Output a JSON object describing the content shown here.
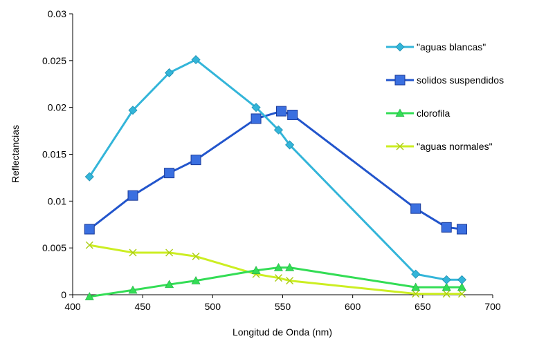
{
  "chart_data": {
    "type": "line",
    "title": "",
    "xlabel": "Longitud de Onda (nm)",
    "ylabel": "Reflectancias",
    "xlim": [
      400,
      700
    ],
    "ylim": [
      0,
      0.03
    ],
    "xticks": [
      400,
      450,
      500,
      550,
      600,
      650,
      700
    ],
    "yticks": [
      0,
      0.005,
      0.01,
      0.015,
      0.02,
      0.025,
      0.03
    ],
    "xtick_labels": [
      "400",
      "450",
      "500",
      "550",
      "600",
      "650",
      "700"
    ],
    "ytick_labels": [
      "0",
      "0.005",
      "0.01",
      "0.015",
      "0.02",
      "0.025",
      "0.03"
    ],
    "grid": false,
    "legend_position": "right",
    "series": [
      {
        "name": "\"aguas blancas\"",
        "color": "#33b5d9",
        "marker": "diamond",
        "x": [
          412,
          443,
          469,
          488,
          531,
          547,
          555,
          645,
          667,
          678
        ],
        "y": [
          0.0126,
          0.0197,
          0.0237,
          0.0251,
          0.02,
          0.0176,
          0.016,
          0.0022,
          0.0016,
          0.0016
        ]
      },
      {
        "name": "solidos suspendidos",
        "color": "#2255cc",
        "marker": "square",
        "x": [
          412,
          443,
          469,
          488,
          531,
          549,
          557,
          645,
          667,
          678
        ],
        "y": [
          0.007,
          0.0106,
          0.013,
          0.0144,
          0.0188,
          0.0196,
          0.0192,
          0.0092,
          0.0072,
          0.007
        ]
      },
      {
        "name": "clorofila",
        "color": "#33dd55",
        "marker": "triangle",
        "x": [
          412,
          443,
          469,
          488,
          531,
          547,
          555,
          645,
          667,
          678
        ],
        "y": [
          -0.0002,
          0.0005,
          0.0011,
          0.0015,
          0.0026,
          0.0029,
          0.0029,
          0.0008,
          0.0008,
          0.0008
        ]
      },
      {
        "name": "\"aguas normales\"",
        "color": "#ccee22",
        "marker": "x",
        "x": [
          412,
          443,
          469,
          488,
          531,
          547,
          555,
          645,
          667,
          678
        ],
        "y": [
          0.0053,
          0.0045,
          0.0045,
          0.0041,
          0.0022,
          0.0018,
          0.0015,
          0.0001,
          0.0001,
          0.0001
        ]
      }
    ]
  }
}
